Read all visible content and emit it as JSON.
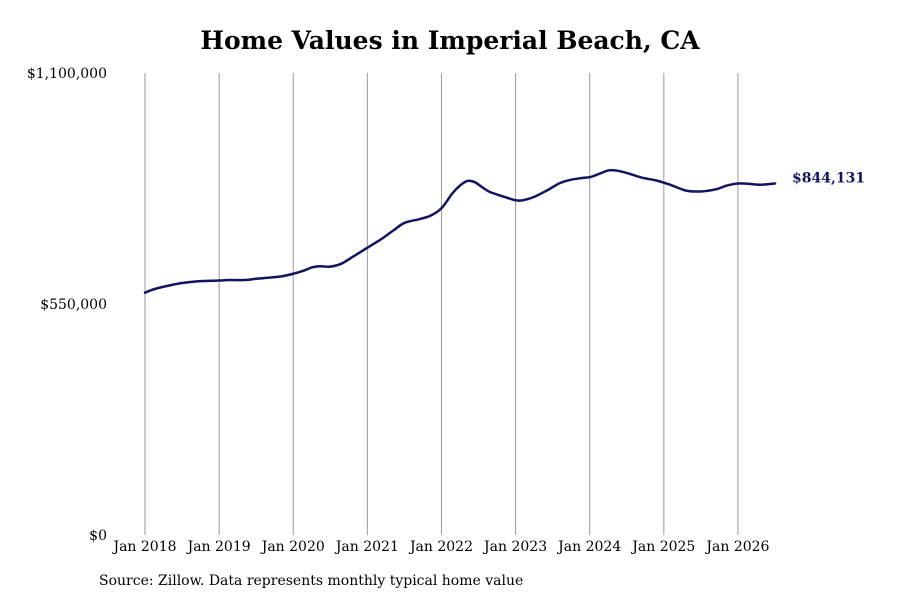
{
  "chart_data": {
    "type": "line",
    "title": "Home Values in Imperial Beach, CA",
    "xlabel": "",
    "ylabel": "",
    "x_ticks": [
      {
        "label": "Jan 2018",
        "value": 2018.0
      },
      {
        "label": "Jan 2019",
        "value": 2019.0
      },
      {
        "label": "Jan 2020",
        "value": 2020.0
      },
      {
        "label": "Jan 2021",
        "value": 2021.0
      },
      {
        "label": "Jan 2022",
        "value": 2022.0
      },
      {
        "label": "Jan 2023",
        "value": 2023.0
      },
      {
        "label": "Jan 2024",
        "value": 2024.0
      },
      {
        "label": "Jan 2025",
        "value": 2025.0
      },
      {
        "label": "Jan 2026",
        "value": 2026.0
      }
    ],
    "y_ticks": [
      {
        "label": "$0",
        "value": 0
      },
      {
        "label": "$550,000",
        "value": 550000
      },
      {
        "label": "$1,100,000",
        "value": 1100000
      }
    ],
    "xlim": [
      2018.0,
      2026.5
    ],
    "ylim": [
      0,
      1100000
    ],
    "grid": "vertical",
    "line_color": "#11145e",
    "series": [
      {
        "x": [
          2018.0,
          2018.1,
          2018.2,
          2018.35,
          2018.5,
          2018.7,
          2018.85,
          2019.0,
          2019.15,
          2019.35,
          2019.5,
          2019.7,
          2019.85,
          2020.0,
          2020.15,
          2020.25,
          2020.35,
          2020.5,
          2020.65,
          2020.8,
          2021.0,
          2021.2,
          2021.35,
          2021.5,
          2021.7,
          2021.85,
          2022.0,
          2022.15,
          2022.25,
          2022.35,
          2022.45,
          2022.55,
          2022.65,
          2022.85,
          2023.0,
          2023.1,
          2023.25,
          2023.45,
          2023.6,
          2023.75,
          2023.9,
          2024.0,
          2024.1,
          2024.25,
          2024.35,
          2024.5,
          2024.7,
          2024.9,
          2025.1,
          2025.3,
          2025.5,
          2025.7,
          2025.85,
          2026.0,
          2026.15,
          2026.3,
          2026.5
        ],
        "y": [
          577000,
          584000,
          589000,
          595000,
          600000,
          604000,
          605000,
          606000,
          607000,
          607000,
          610000,
          613000,
          616000,
          622000,
          630000,
          637000,
          640000,
          639000,
          646000,
          662000,
          684000,
          706000,
          725000,
          743000,
          752000,
          760000,
          778000,
          814000,
          832000,
          843000,
          840000,
          828000,
          817000,
          805000,
          797000,
          797000,
          805000,
          823000,
          838000,
          846000,
          850000,
          852000,
          858000,
          868000,
          868000,
          862000,
          851000,
          844000,
          833000,
          820000,
          818000,
          823000,
          832000,
          837000,
          836000,
          834000,
          837000
        ]
      }
    ],
    "last_value_label": "$844,131"
  },
  "source_note": "Source: Zillow. Data represents monthly typical home value"
}
